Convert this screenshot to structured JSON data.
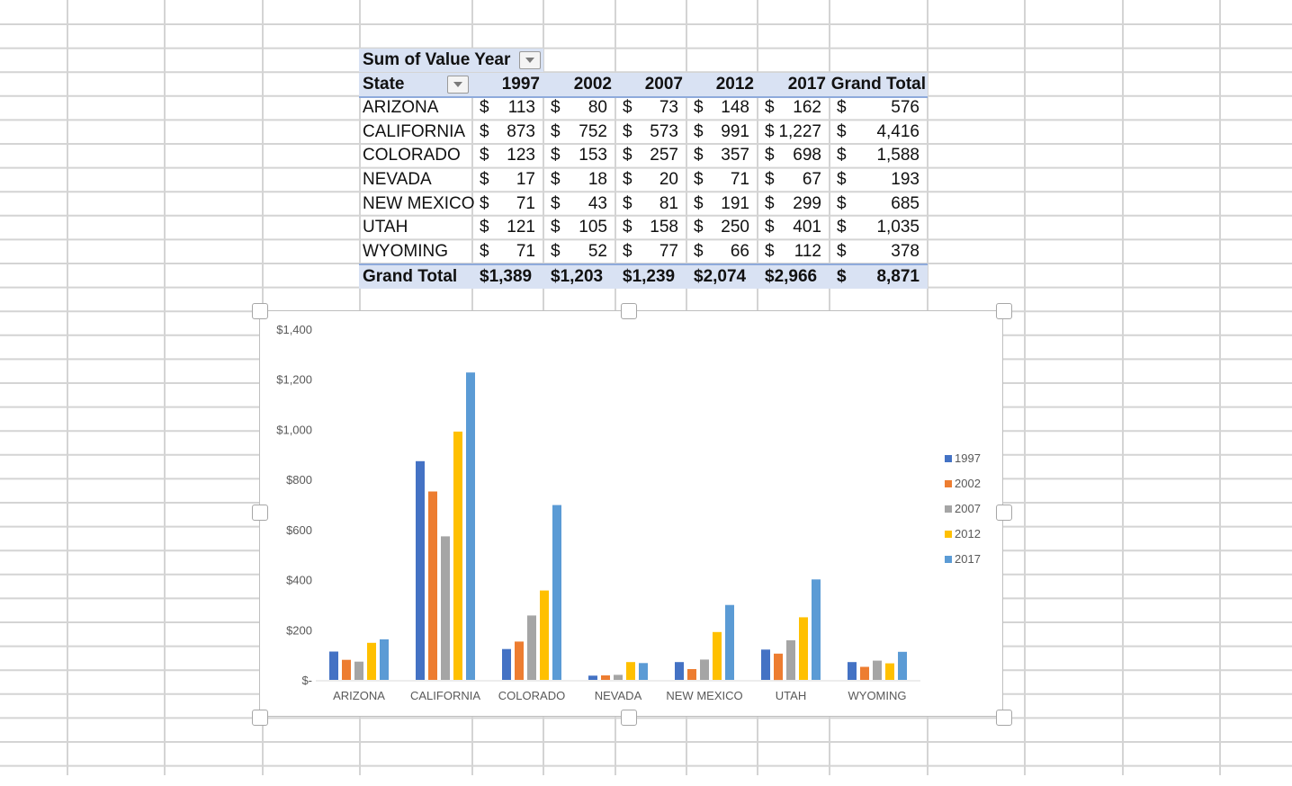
{
  "pivot": {
    "header1": {
      "label": "Sum of Value",
      "year_label": "Year"
    },
    "header2": {
      "state_label": "State",
      "years": [
        "1997",
        "2002",
        "2007",
        "2012",
        "2017"
      ],
      "grand_total_label": "Grand Total"
    },
    "currency": "$",
    "rows": [
      {
        "state": "ARIZONA",
        "values": [
          "113",
          "80",
          "73",
          "148",
          "162"
        ],
        "total": "576"
      },
      {
        "state": "CALIFORNIA",
        "values": [
          "873",
          "752",
          "573",
          "991",
          "1,227"
        ],
        "total": "4,416"
      },
      {
        "state": "COLORADO",
        "values": [
          "123",
          "153",
          "257",
          "357",
          "698"
        ],
        "total": "1,588"
      },
      {
        "state": "NEVADA",
        "values": [
          "17",
          "18",
          "20",
          "71",
          "67"
        ],
        "total": "193"
      },
      {
        "state": "NEW MEXICO",
        "values": [
          "71",
          "43",
          "81",
          "191",
          "299"
        ],
        "total": "685"
      },
      {
        "state": "UTAH",
        "values": [
          "121",
          "105",
          "158",
          "250",
          "401"
        ],
        "total": "1,035"
      },
      {
        "state": "WYOMING",
        "values": [
          "71",
          "52",
          "77",
          "66",
          "112"
        ],
        "total": "378"
      }
    ],
    "grand_total": {
      "label": "Grand Total",
      "values": [
        "$1,389",
        "$1,203",
        "$1,239",
        "$2,074",
        "$2,966"
      ],
      "total": "8,871"
    }
  },
  "chart_data": {
    "type": "bar",
    "categories": [
      "ARIZONA",
      "CALIFORNIA",
      "COLORADO",
      "NEVADA",
      "NEW MEXICO",
      "UTAH",
      "WYOMING"
    ],
    "series": [
      {
        "name": "1997",
        "color": "#4472c4",
        "values": [
          113,
          873,
          123,
          17,
          71,
          121,
          71
        ]
      },
      {
        "name": "2002",
        "color": "#ed7d31",
        "values": [
          80,
          752,
          153,
          18,
          43,
          105,
          52
        ]
      },
      {
        "name": "2007",
        "color": "#a5a5a5",
        "values": [
          73,
          573,
          257,
          20,
          81,
          158,
          77
        ]
      },
      {
        "name": "2012",
        "color": "#ffc000",
        "values": [
          148,
          991,
          357,
          71,
          191,
          250,
          66
        ]
      },
      {
        "name": "2017",
        "color": "#5b9bd5",
        "values": [
          162,
          1227,
          698,
          67,
          299,
          401,
          112
        ]
      }
    ],
    "ylim": [
      0,
      1400
    ],
    "yticks": [
      0,
      200,
      400,
      600,
      800,
      1000,
      1200,
      1400
    ],
    "ytick_labels": [
      "$-",
      "$200",
      "$400",
      "$600",
      "$800",
      "$1,000",
      "$1,200",
      "$1,400"
    ],
    "legend_position": "right",
    "grid": false
  }
}
